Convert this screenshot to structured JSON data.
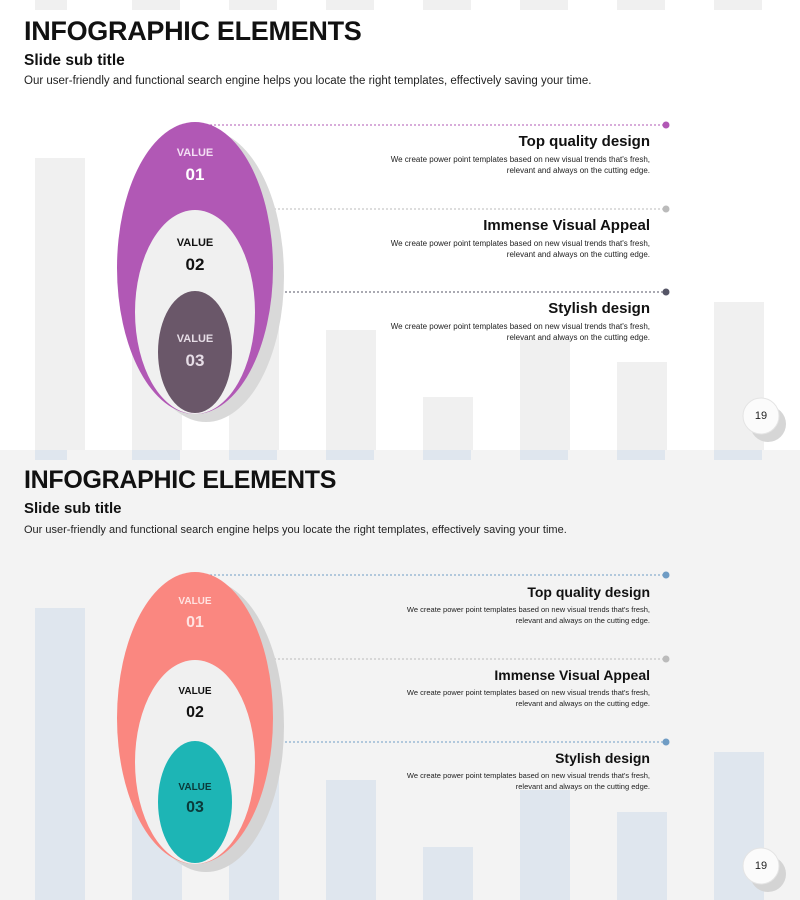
{
  "slides": [
    {
      "title": "INFOGRAPHIC ELEMENTS",
      "subtitle": "Slide sub title",
      "description": "Our user-friendly and functional search engine helps you locate the right templates, effectively saving your time.",
      "page_number": "19",
      "colors": {
        "outer": "#b158b5",
        "middle": "#f0f0f0",
        "inner": "#6a5769",
        "bars": "#f0f0f0",
        "dot1": "#b158b5",
        "dot2": "#bbbbbb",
        "dot3": "#555566"
      },
      "values": [
        {
          "label": "VALUE",
          "number": "01"
        },
        {
          "label": "VALUE",
          "number": "02"
        },
        {
          "label": "VALUE",
          "number": "03"
        }
      ],
      "items": [
        {
          "heading": "Top quality design",
          "text": "We create power point templates based on new visual trends that's fresh, relevant and always on the cutting edge."
        },
        {
          "heading": "Immense Visual Appeal",
          "text": "We create power point templates based on new visual trends that's fresh, relevant and always on the cutting edge."
        },
        {
          "heading": "Stylish design",
          "text": "We create power point templates based on new visual trends that's fresh, relevant and always on the cutting edge."
        }
      ]
    },
    {
      "title": "INFOGRAPHIC ELEMENTS",
      "subtitle": "Slide sub title",
      "description": "Our user-friendly and functional search engine helps you locate the right templates, effectively saving your time.",
      "page_number": "19",
      "colors": {
        "outer": "#fa8780",
        "middle": "#f0f0f0",
        "inner": "#1db5b5",
        "bars": "#dfe6ee",
        "dot1": "#6f9cc4",
        "dot2": "#bbbbbb",
        "dot3": "#6f9cc4"
      },
      "values": [
        {
          "label": "VALUE",
          "number": "01"
        },
        {
          "label": "VALUE",
          "number": "02"
        },
        {
          "label": "VALUE",
          "number": "03"
        }
      ],
      "items": [
        {
          "heading": "Top quality design",
          "text": "We create power point templates based on new visual trends that's fresh, relevant and always on the cutting edge."
        },
        {
          "heading": "Immense Visual Appeal",
          "text": "We create power point templates based on new visual trends that's fresh, relevant and always on the cutting edge."
        },
        {
          "heading": "Stylish design",
          "text": "We create power point templates based on new visual trends that's fresh, relevant and always on the cutting edge."
        }
      ]
    }
  ]
}
